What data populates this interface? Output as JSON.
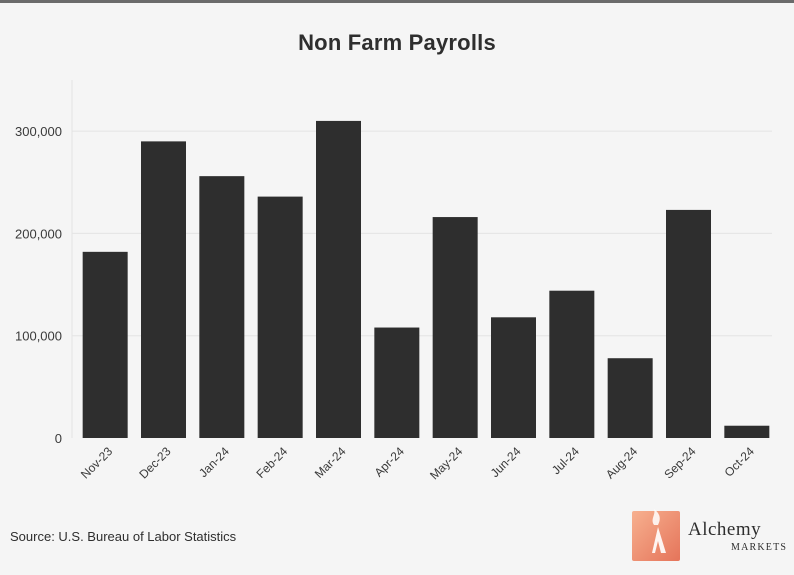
{
  "chart_data": {
    "type": "bar",
    "title": "Non Farm Payrolls",
    "xlabel": "",
    "ylabel": "",
    "categories": [
      "Nov-23",
      "Dec-23",
      "Jan-24",
      "Feb-24",
      "Mar-24",
      "Apr-24",
      "May-24",
      "Jun-24",
      "Jul-24",
      "Aug-24",
      "Sep-24",
      "Oct-24"
    ],
    "values": [
      182000,
      290000,
      256000,
      236000,
      310000,
      108000,
      216000,
      118000,
      144000,
      78000,
      223000,
      12000
    ],
    "ylim": [
      0,
      350000
    ],
    "yticks": [
      0,
      100000,
      200000,
      300000
    ],
    "ytick_labels": [
      "0",
      "100,000",
      "200,000",
      "300,000"
    ],
    "grid": true,
    "bar_color": "#2e2e2e"
  },
  "footer": {
    "source": "Source: U.S. Bureau of Labor Statistics"
  },
  "logo": {
    "name": "Alchemy",
    "sub": "MARKETS"
  }
}
